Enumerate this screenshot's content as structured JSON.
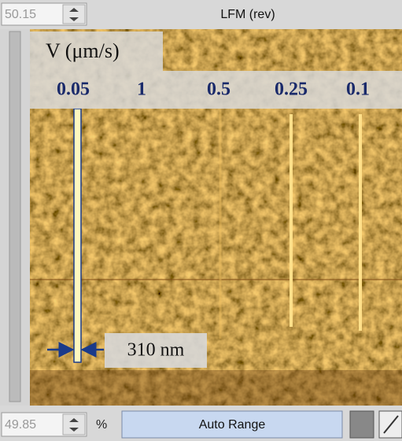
{
  "top_bar": {
    "value": "50.15",
    "title": "LFM (rev)"
  },
  "overlay": {
    "axis_label": "V (μm/s)",
    "speeds": [
      "0.05",
      "1",
      "0.5",
      "0.25",
      "0.1"
    ],
    "scale_label": "310 nm"
  },
  "bottom_bar": {
    "value": "49.85",
    "unit": "%",
    "button": "Auto Range"
  }
}
